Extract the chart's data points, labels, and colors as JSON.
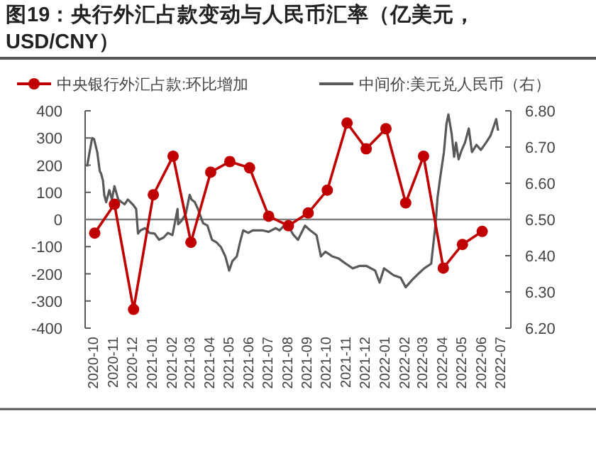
{
  "chart_data": {
    "type": "line",
    "title": "图19：央行外汇占款变动与人民币汇率（亿美元，USD/CNY）",
    "x": [
      "2020-10",
      "2020-11",
      "2020-12",
      "2021-01",
      "2021-02",
      "2021-03",
      "2021-04",
      "2021-05",
      "2021-06",
      "2021-07",
      "2021-08",
      "2021-09",
      "2021-10",
      "2021-11",
      "2021-12",
      "2022-01",
      "2022-02",
      "2022-03",
      "2022-04",
      "2022-05",
      "2022-06"
    ],
    "xlim": [
      "2020-09-16",
      "2022-07-16"
    ],
    "xticks": [
      "2020-10",
      "2020-11",
      "2020-12",
      "2021-01",
      "2021-02",
      "2021-03",
      "2021-04",
      "2021-05",
      "2021-06",
      "2021-07",
      "2021-08",
      "2021-09",
      "2021-10",
      "2021-11",
      "2021-12",
      "2022-01",
      "2022-02",
      "2022-03",
      "2022-04",
      "2022-05",
      "2022-06",
      "2022-07"
    ],
    "series": [
      {
        "name": "中央银行外汇占款:环比增加",
        "color": "#c00000",
        "marker": "circle",
        "values": [
          -50,
          56,
          -331,
          91,
          233,
          -84,
          174,
          213,
          190,
          12,
          -23,
          24,
          108,
          355,
          260,
          334,
          61,
          233,
          -179,
          -92,
          -44
        ]
      },
      {
        "name": "中间价:美元兑人民币（右）",
        "color": "#595959",
        "axis": "y2",
        "marker": "none",
        "x": [
          "2020-09-19",
          "2020-09-23",
          "2020-09-27",
          "2020-09-30",
          "2020-10-05",
          "2020-10-09",
          "2020-10-11",
          "2020-10-14",
          "2020-10-16",
          "2020-10-19",
          "2020-10-24",
          "2020-10-28",
          "2020-11-01",
          "2020-11-07",
          "2020-11-12",
          "2020-11-17",
          "2020-11-22",
          "2020-12-01",
          "2020-12-05",
          "2020-12-08",
          "2020-12-12",
          "2020-12-19",
          "2020-12-26",
          "2021-01-03",
          "2021-01-10",
          "2021-01-17",
          "2021-01-24",
          "2021-01-31",
          "2021-02-08",
          "2021-02-09",
          "2021-02-14",
          "2021-02-21",
          "2021-02-27",
          "2021-03-02",
          "2021-03-07",
          "2021-03-12",
          "2021-03-20",
          "2021-03-27",
          "2021-04-03",
          "2021-04-10",
          "2021-04-17",
          "2021-04-24",
          "2021-04-30",
          "2021-05-05",
          "2021-05-12",
          "2021-05-17",
          "2021-05-22",
          "2021-05-30",
          "2021-06-06",
          "2021-06-21",
          "2021-07-01",
          "2021-07-12",
          "2021-07-18",
          "2021-07-29",
          "2021-08-09",
          "2021-08-16",
          "2021-08-27",
          "2021-09-04",
          "2021-09-14",
          "2021-09-21",
          "2021-09-28",
          "2021-10-09",
          "2021-10-19",
          "2021-10-30",
          "2021-11-10",
          "2021-11-21",
          "2021-12-01",
          "2021-12-15",
          "2021-12-22",
          "2021-12-29",
          "2022-01-13",
          "2022-01-24",
          "2022-02-01",
          "2022-02-11",
          "2022-02-22",
          "2022-03-02",
          "2022-03-13",
          "2022-03-20",
          "2022-03-23",
          "2022-03-27",
          "2022-04-02",
          "2022-04-06",
          "2022-04-09",
          "2022-04-14",
          "2022-04-18",
          "2022-04-21",
          "2022-04-25",
          "2022-04-30",
          "2022-05-05",
          "2022-05-11",
          "2022-05-16",
          "2022-05-23",
          "2022-05-30",
          "2022-06-07",
          "2022-06-14",
          "2022-06-18",
          "2022-06-23",
          "2022-06-26"
        ],
        "values": [
          6.646,
          6.686,
          6.725,
          6.722,
          6.686,
          6.633,
          6.627,
          6.607,
          6.568,
          6.548,
          6.581,
          6.555,
          6.592,
          6.555,
          6.548,
          6.542,
          6.555,
          6.539,
          6.529,
          6.461,
          6.47,
          6.476,
          6.463,
          6.461,
          6.444,
          6.45,
          6.463,
          6.457,
          6.529,
          6.487,
          6.496,
          6.516,
          6.568,
          6.555,
          6.548,
          6.529,
          6.49,
          6.483,
          6.444,
          6.437,
          6.424,
          6.398,
          6.359,
          6.385,
          6.398,
          6.437,
          6.47,
          6.463,
          6.47,
          6.47,
          6.466,
          6.476,
          6.47,
          6.49,
          6.457,
          6.444,
          6.483,
          6.47,
          6.457,
          6.398,
          6.411,
          6.398,
          6.392,
          6.378,
          6.365,
          6.372,
          6.372,
          6.359,
          6.326,
          6.365,
          6.346,
          6.339,
          6.313,
          6.333,
          6.352,
          6.365,
          6.378,
          6.49,
          6.561,
          6.614,
          6.686,
          6.764,
          6.79,
          6.738,
          6.673,
          6.712,
          6.666,
          6.692,
          6.712,
          6.751,
          6.686,
          6.706,
          6.692,
          6.712,
          6.731,
          6.751,
          6.777,
          6.745
        ]
      }
    ],
    "ylim": [
      -400,
      400
    ],
    "yticks": [
      -400,
      -300,
      -200,
      -100,
      0,
      100,
      200,
      300,
      400
    ],
    "y2lim": [
      6.2,
      6.8
    ],
    "y2ticks": [
      {
        "value": 6.2,
        "label": "6.20"
      },
      {
        "value": 6.3,
        "label": "6.30"
      },
      {
        "value": 6.4,
        "label": "6.40"
      },
      {
        "value": 6.5,
        "label": "6.50"
      },
      {
        "value": 6.6,
        "label": "6.60"
      },
      {
        "value": 6.7,
        "label": "6.70"
      },
      {
        "value": 6.8,
        "label": "6.80"
      }
    ],
    "ref_lines": [
      {
        "axis": "y",
        "value": 0,
        "color": "#7f7f7f"
      }
    ],
    "legend": "top",
    "grid": false
  }
}
